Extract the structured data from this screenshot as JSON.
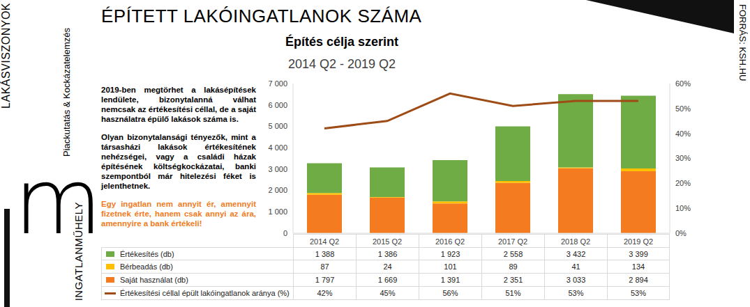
{
  "branding": {
    "section": "LAKÁSVISZONYOK",
    "tagline": "Piackutatás & Kockázatelemzés",
    "logo_letter": "m",
    "company": "INGATLANMŰHELY",
    "source": "FORRÁS: KSH.HU"
  },
  "chart_data": {
    "type": "bar",
    "title": "ÉPÍTETT LAKÓINGATLANOK SZÁMA",
    "subtitle": "Építés célja szerint",
    "period": "2014 Q2 - 2019 Q2",
    "annotations": [
      "2019-ben megtörhet a lakásépítések lendülete, bizonytalanná válhat nemcsak az értékesítési céllal, de a saját használatra épülő lakások száma is.",
      "Olyan bizonytalansági tényezők, mint a társasházi lakások értékesítének nehézségei, vagy a családi házak építésének költségkockázatai, banki szempontból már hitelezési féket is jelenthetnek.",
      "Egy ingatlan nem annyit ér, amennyit fizetnek érte, hanem csak annyi az ára, amennyire a bank értékeli!"
    ],
    "categories": [
      "2014 Q2",
      "2015 Q2",
      "2016 Q2",
      "2017 Q2",
      "2018 Q2",
      "2019 Q2"
    ],
    "stacked": true,
    "grid": false,
    "series": [
      {
        "name": "Értékesítés (db)",
        "color": "#6fac46",
        "values": [
          1388,
          1386,
          1923,
          2558,
          3432,
          3399
        ],
        "value_labels": [
          "1 388",
          "1 386",
          "1 923",
          "2 558",
          "3 432",
          "3 399"
        ]
      },
      {
        "name": "Bérbeadás (db)",
        "color": "#ffc000",
        "values": [
          87,
          24,
          101,
          89,
          41,
          134
        ],
        "value_labels": [
          "87",
          "24",
          "101",
          "89",
          "41",
          "134"
        ]
      },
      {
        "name": "Saját használat (db)",
        "color": "#f47b20",
        "values": [
          1797,
          1669,
          1391,
          2351,
          3033,
          2894
        ],
        "value_labels": [
          "1 797",
          "1 669",
          "1 391",
          "2 351",
          "3 033",
          "2 894"
        ]
      },
      {
        "name": "Értékesítési céllal épült lakóingatlanok aránya (%)",
        "type": "line",
        "axis": "y2",
        "color": "#9e4b16",
        "values": [
          42,
          45,
          56,
          51,
          53,
          53
        ],
        "value_labels": [
          "42%",
          "45%",
          "56%",
          "51%",
          "53%",
          "53%"
        ]
      }
    ],
    "ylim": [
      0,
      7000
    ],
    "yticks": [
      0,
      {
        "value": 1000,
        "label": "1 000"
      },
      {
        "value": 2000,
        "label": "2 000"
      },
      {
        "value": 3000,
        "label": "3 000"
      },
      {
        "value": 4000,
        "label": "4 000"
      },
      {
        "value": 5000,
        "label": "5 000"
      },
      {
        "value": 6000,
        "label": "6 000"
      },
      {
        "value": 7000,
        "label": "7 000"
      }
    ],
    "y2lim": [
      0,
      60
    ],
    "y2ticks": [
      {
        "value": 0,
        "label": "0%"
      },
      {
        "value": 10,
        "label": "10%"
      },
      {
        "value": 20,
        "label": "20%"
      },
      {
        "value": 30,
        "label": "30%"
      },
      {
        "value": 40,
        "label": "40%"
      },
      {
        "value": 50,
        "label": "50%"
      },
      {
        "value": 60,
        "label": "60%"
      }
    ]
  }
}
